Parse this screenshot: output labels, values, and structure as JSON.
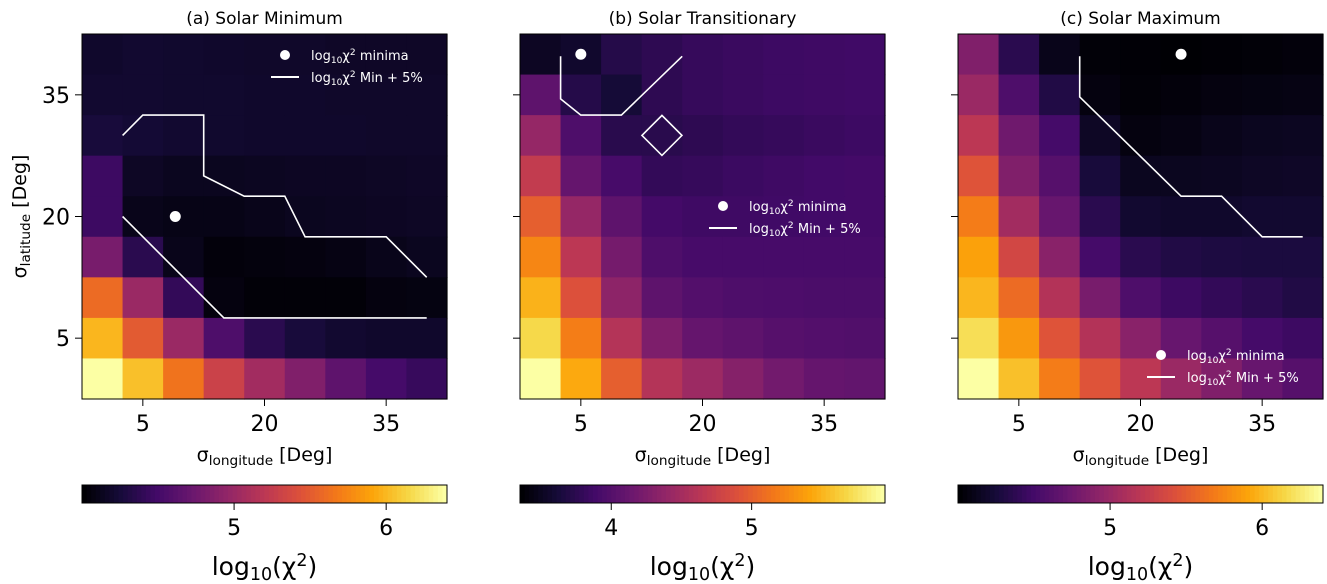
{
  "chart_data": [
    {
      "type": "heatmap",
      "title": "(a) Solar Minimum",
      "xlabel": "σ_longitude [Deg]",
      "ylabel": "σ_latitude [Deg]",
      "xticks": [
        "5",
        "20",
        "35"
      ],
      "yticks": [
        "35",
        "20",
        "5"
      ],
      "grid_size": 9,
      "z": [
        [
          4.18,
          4.2,
          4.19,
          4.18,
          4.17,
          4.17,
          4.16,
          4.16,
          4.16
        ],
        [
          4.2,
          4.2,
          4.19,
          4.19,
          4.18,
          4.18,
          4.17,
          4.17,
          4.17
        ],
        [
          4.25,
          4.22,
          4.2,
          4.19,
          4.18,
          4.18,
          4.18,
          4.17,
          4.17
        ],
        [
          4.45,
          4.15,
          4.12,
          4.12,
          4.13,
          4.14,
          4.14,
          4.15,
          4.16
        ],
        [
          4.45,
          4.1,
          4.08,
          4.08,
          4.1,
          4.12,
          4.13,
          4.14,
          4.15
        ],
        [
          4.8,
          4.35,
          4.1,
          4.03,
          4.04,
          4.05,
          4.07,
          4.1,
          4.12
        ],
        [
          5.6,
          5.0,
          4.4,
          4.05,
          4.02,
          4.02,
          4.02,
          4.05,
          4.06
        ],
        [
          6.0,
          5.5,
          5.0,
          4.55,
          4.35,
          4.25,
          4.2,
          4.18,
          4.18
        ],
        [
          6.4,
          6.05,
          5.65,
          5.3,
          5.05,
          4.85,
          4.65,
          4.5,
          4.42
        ]
      ],
      "colorbar": {
        "label": "log10(χ2)",
        "min": 4.0,
        "max": 6.4,
        "ticks": [
          5,
          6
        ],
        "tick_labels": [
          "5",
          "6"
        ]
      },
      "minimum_point": {
        "x_cell": 2.3,
        "y_cell": 4.5
      },
      "contour_cells": [
        [
          1,
          2.5
        ],
        [
          1.5,
          2
        ],
        [
          3,
          2
        ],
        [
          3,
          3.5
        ],
        [
          4,
          4
        ],
        [
          5,
          4
        ],
        [
          5.5,
          5
        ],
        [
          7.5,
          5
        ],
        [
          8.5,
          6
        ]
      ],
      "contour_cells_bottom": [
        [
          1,
          4.5
        ],
        [
          3.5,
          7
        ],
        [
          8.5,
          7
        ]
      ],
      "legend": {
        "position": "top-right",
        "entries": [
          "log10χ2 minima",
          "log10χ2 Min + 5%"
        ]
      }
    },
    {
      "type": "heatmap",
      "title": "(b) Solar Transitionary",
      "xlabel": "σ_longitude [Deg]",
      "ylabel": "",
      "xticks": [
        "5",
        "20",
        "35"
      ],
      "yticks": [],
      "grid_size": 9,
      "z": [
        [
          3.5,
          3.55,
          3.7,
          3.75,
          3.8,
          3.82,
          3.84,
          3.85,
          3.86
        ],
        [
          4.05,
          3.7,
          3.6,
          3.75,
          3.8,
          3.82,
          3.84,
          3.85,
          3.86
        ],
        [
          4.4,
          3.95,
          3.72,
          3.72,
          3.75,
          3.78,
          3.8,
          3.82,
          3.84
        ],
        [
          4.7,
          4.1,
          3.9,
          3.78,
          3.8,
          3.83,
          3.85,
          3.87,
          3.88
        ],
        [
          5.0,
          4.4,
          4.05,
          3.88,
          3.85,
          3.85,
          3.86,
          3.87,
          3.88
        ],
        [
          5.25,
          4.65,
          4.2,
          3.95,
          3.9,
          3.9,
          3.9,
          3.9,
          3.9
        ],
        [
          5.5,
          4.9,
          4.35,
          4.05,
          3.98,
          3.95,
          3.94,
          3.93,
          3.93
        ],
        [
          5.7,
          5.2,
          4.6,
          4.25,
          4.1,
          4.05,
          4.0,
          3.98,
          3.97
        ],
        [
          5.95,
          5.45,
          5.0,
          4.6,
          4.45,
          4.3,
          4.18,
          4.1,
          4.08
        ]
      ],
      "colorbar": {
        "label": "log10(χ2)",
        "min": 3.35,
        "max": 5.95,
        "ticks": [
          4,
          5
        ],
        "tick_labels": [
          "4",
          "5"
        ]
      },
      "minimum_point": {
        "x_cell": 1.5,
        "y_cell": 0.5
      },
      "contour_cells": [
        [
          1,
          0.55
        ],
        [
          1,
          1.6
        ],
        [
          1.5,
          2
        ],
        [
          2.5,
          2
        ],
        [
          4,
          0.55
        ]
      ],
      "contour_cells_bottom": [
        [
          3.5,
          2.5
        ],
        [
          3.5,
          2.5
        ]
      ],
      "legend": {
        "position": "center-right",
        "entries": [
          "log10χ2 minima",
          "log10χ2 Min + 5%"
        ]
      }
    },
    {
      "type": "heatmap",
      "title": "(c) Solar Maximum",
      "xlabel": "σ_longitude [Deg]",
      "ylabel": "",
      "xticks": [
        "5",
        "20",
        "35"
      ],
      "yticks": [],
      "grid_size": 9,
      "z": [
        [
          4.85,
          4.35,
          4.1,
          4.02,
          4.01,
          4.0,
          4.01,
          4.02,
          4.03
        ],
        [
          5.0,
          4.55,
          4.3,
          4.05,
          4.02,
          4.03,
          4.05,
          4.06,
          4.07
        ],
        [
          5.2,
          4.75,
          4.5,
          4.15,
          4.05,
          4.07,
          4.1,
          4.12,
          4.13
        ],
        [
          5.45,
          4.85,
          4.6,
          4.25,
          4.12,
          4.12,
          4.13,
          4.15,
          4.16
        ],
        [
          5.7,
          5.05,
          4.7,
          4.35,
          4.2,
          4.18,
          4.18,
          4.2,
          4.2
        ],
        [
          5.9,
          5.35,
          4.9,
          4.5,
          4.35,
          4.3,
          4.28,
          4.27,
          4.27
        ],
        [
          6.0,
          5.6,
          5.15,
          4.8,
          4.55,
          4.45,
          4.4,
          4.35,
          4.3
        ],
        [
          6.2,
          5.85,
          5.45,
          5.15,
          4.9,
          4.7,
          4.6,
          4.5,
          4.45
        ],
        [
          6.4,
          6.05,
          5.7,
          5.45,
          5.2,
          5.0,
          4.85,
          4.7,
          4.6
        ]
      ],
      "colorbar": {
        "label": "log10(χ2)",
        "min": 4.0,
        "max": 6.4,
        "ticks": [
          5,
          6
        ],
        "tick_labels": [
          "5",
          "6"
        ]
      },
      "minimum_point": {
        "x_cell": 5.5,
        "y_cell": 0.5
      },
      "contour_cells": [
        [
          3,
          0.55
        ],
        [
          3,
          1.55
        ],
        [
          5.5,
          4
        ],
        [
          6.5,
          4
        ],
        [
          7.5,
          5
        ],
        [
          8.5,
          5
        ]
      ],
      "legend": {
        "position": "bottom-right",
        "entries": [
          "log10χ2 minima",
          "log10χ2 Min + 5%"
        ]
      }
    }
  ]
}
